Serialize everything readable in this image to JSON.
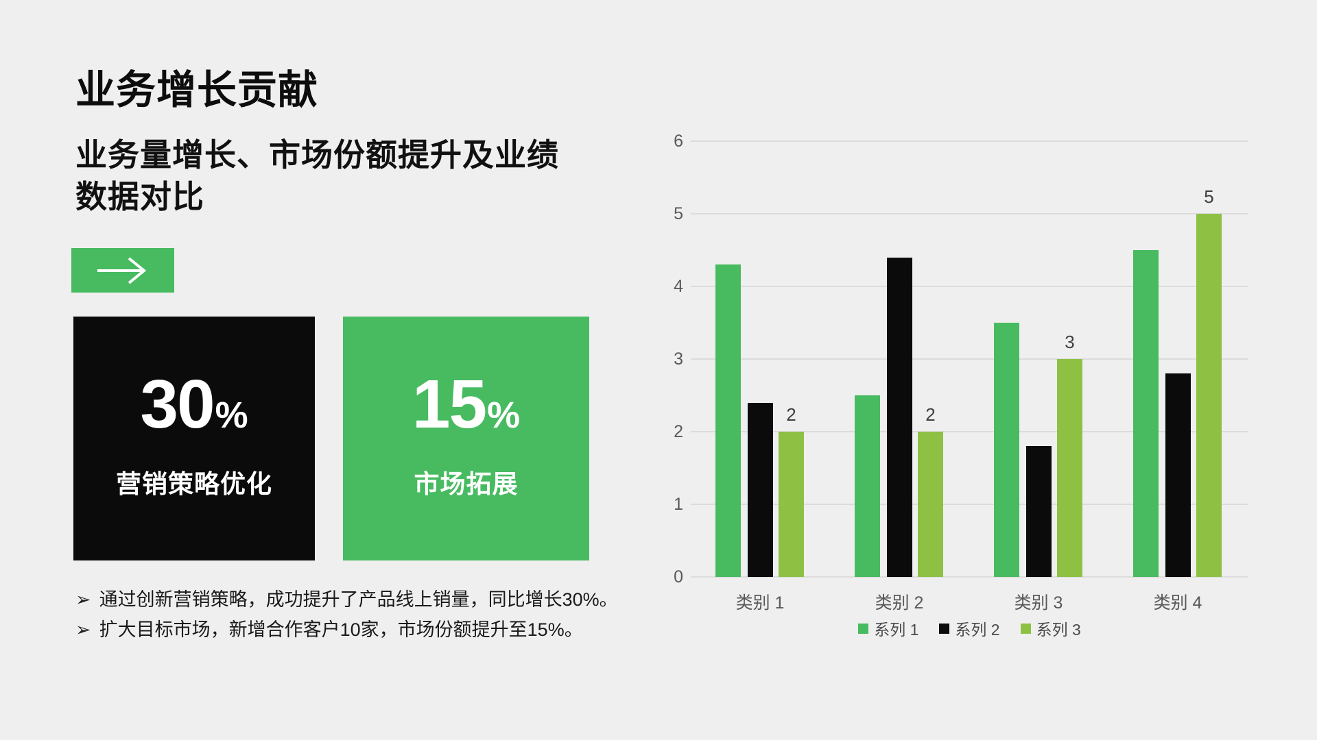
{
  "slide": {
    "title": "业务增长贡献",
    "subtitle": "业务量增长、市场份额提升及业绩\n数据对比",
    "arrow_icon": "right-arrow",
    "stats": [
      {
        "value": "30",
        "unit": "%",
        "label": "营销策略优化",
        "bg": "#0B0B0B"
      },
      {
        "value": "15",
        "unit": "%",
        "label": "市场拓展",
        "bg": "#48BB61"
      }
    ],
    "bullets": [
      {
        "marker": "➢",
        "text": "通过创新营销策略，成功提升了产品线上销量，同比增长30%。"
      },
      {
        "marker": "➢",
        "text": "扩大目标市场，新增合作客户10家，市场份额提升至15%。"
      }
    ],
    "colors": {
      "background": "#EFEFEF",
      "accent_green": "#48BB61",
      "light_green": "#8EC044",
      "black": "#0B0B0B",
      "gridline": "#DCDCDC",
      "axis_text": "#595959"
    }
  },
  "chart_data": {
    "type": "bar",
    "categories": [
      "类别 1",
      "类别 2",
      "类别 3",
      "类别 4"
    ],
    "series": [
      {
        "name": "系列 1",
        "color": "#48BB61",
        "values": [
          4.3,
          2.5,
          3.5,
          4.5
        ]
      },
      {
        "name": "系列 2",
        "color": "#0B0B0B",
        "values": [
          2.4,
          4.4,
          1.8,
          2.8
        ]
      },
      {
        "name": "系列 3",
        "color": "#8EC044",
        "values": [
          2,
          2,
          3,
          5
        ]
      }
    ],
    "data_label_series_index": 2,
    "data_labels": [
      "2",
      "2",
      "3",
      "5"
    ],
    "y_ticks": [
      0,
      1,
      2,
      3,
      4,
      5,
      6
    ],
    "ylim": [
      0,
      6
    ],
    "grid": true,
    "legend_position": "bottom"
  }
}
